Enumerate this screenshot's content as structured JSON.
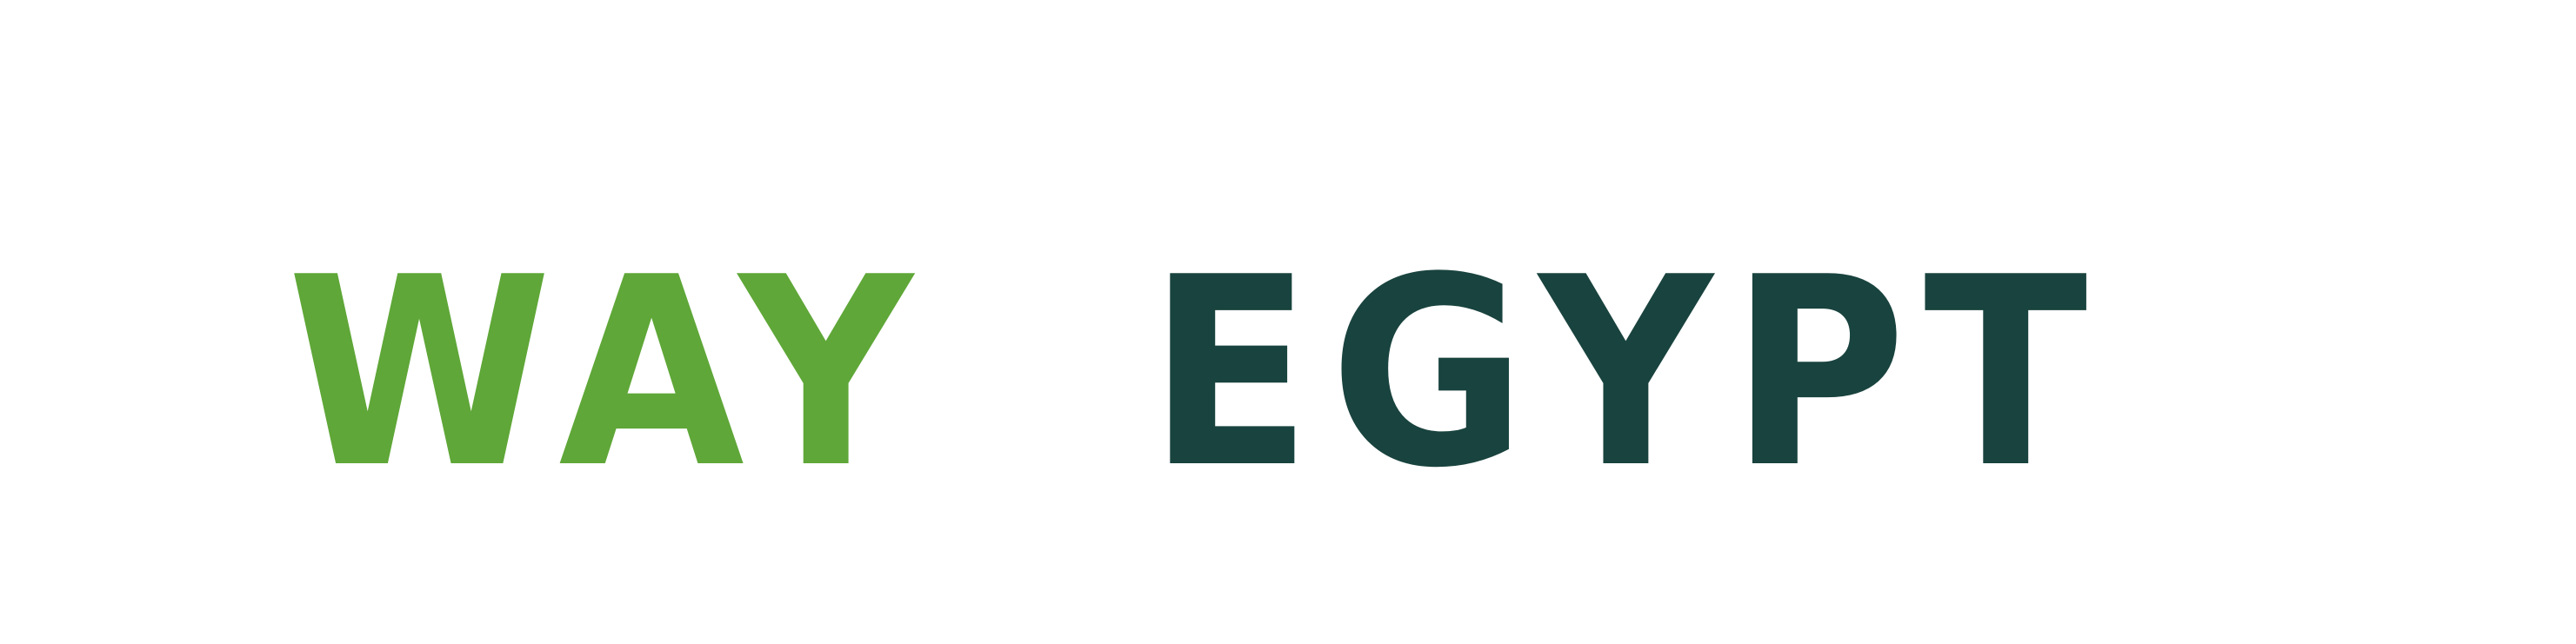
{
  "logo": {
    "word_1": "WAY",
    "word_2": "EGYPT",
    "colors": {
      "primary_green": "#5fa738",
      "dark_teal": "#19433e",
      "background": "#ffffff"
    }
  }
}
